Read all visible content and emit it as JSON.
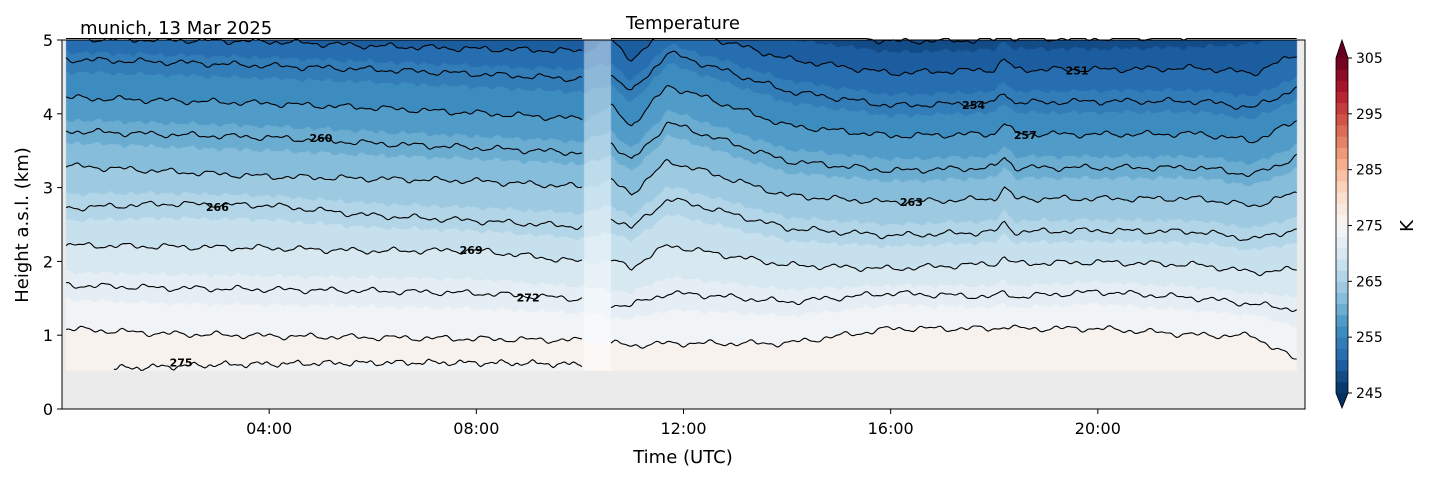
{
  "chart_data": {
    "type": "contour",
    "title": "Temperature",
    "subtitle": "munich, 13 Mar 2025",
    "xlabel": "Time (UTC)",
    "ylabel": "Height a.s.l. (km)",
    "xlim": [
      0,
      24
    ],
    "ylim": [
      0,
      5
    ],
    "xticks": [
      {
        "value": 4,
        "label": "04:00"
      },
      {
        "value": 8,
        "label": "08:00"
      },
      {
        "value": 12,
        "label": "12:00"
      },
      {
        "value": 16,
        "label": "16:00"
      },
      {
        "value": 20,
        "label": "20:00"
      }
    ],
    "yticks": [
      {
        "value": 0,
        "label": "0"
      },
      {
        "value": 1,
        "label": "1"
      },
      {
        "value": 2,
        "label": "2"
      },
      {
        "value": 3,
        "label": "3"
      },
      {
        "value": 4,
        "label": "4"
      },
      {
        "value": 5,
        "label": "5"
      }
    ],
    "colorbar": {
      "label": "K",
      "colormap": "RdBu_r",
      "range": [
        245,
        305
      ],
      "step": 2,
      "extend": "both",
      "ticks": [
        {
          "value": 245,
          "label": "245"
        },
        {
          "value": 255,
          "label": "255"
        },
        {
          "value": 265,
          "label": "265"
        },
        {
          "value": 275,
          "label": "275"
        },
        {
          "value": 285,
          "label": "285"
        },
        {
          "value": 295,
          "label": "295"
        },
        {
          "value": 305,
          "label": "305"
        }
      ],
      "colors": [
        "#053061",
        "#2166ac",
        "#4393c3",
        "#92c5de",
        "#d1e5f0",
        "#f7f7f7",
        "#fddbc7",
        "#f4a582",
        "#d6604d",
        "#b2182b",
        "#67001f"
      ]
    },
    "missing_data_hours": [
      10.07,
      10.6
    ],
    "lowest_valid_height_km": 0.52,
    "times": [
      0,
      2,
      4,
      6,
      8,
      10.07,
      10.6,
      11.0,
      11.7,
      12.5,
      14,
      16,
      18,
      18.2,
      18.4,
      20,
      22,
      23,
      24
    ],
    "contours": [
      {
        "level": 248,
        "heights": [
          5.45,
          5.45,
          5.4,
          5.35,
          5.35,
          5.3,
          5.45,
          5.2,
          5.6,
          5.45,
          5.15,
          4.98,
          5.0,
          5.1,
          5.02,
          5.02,
          5.05,
          5.15,
          5.25
        ]
      },
      {
        "level": 251,
        "heights": [
          5.02,
          5.0,
          4.98,
          4.92,
          4.88,
          4.85,
          4.99,
          4.74,
          5.15,
          5.04,
          4.74,
          4.55,
          4.6,
          4.74,
          4.6,
          4.6,
          4.62,
          4.55,
          4.85
        ]
      },
      {
        "level": 254,
        "heights": [
          4.74,
          4.7,
          4.65,
          4.6,
          4.54,
          4.47,
          4.54,
          4.29,
          4.83,
          4.65,
          4.31,
          4.11,
          4.15,
          4.3,
          4.15,
          4.17,
          4.17,
          4.08,
          4.4
        ]
      },
      {
        "level": 257,
        "heights": [
          4.22,
          4.18,
          4.14,
          4.08,
          4.01,
          3.93,
          4.09,
          3.84,
          4.38,
          4.2,
          3.84,
          3.7,
          3.73,
          3.88,
          3.73,
          3.72,
          3.73,
          3.63,
          3.95
        ]
      },
      {
        "level": 260,
        "heights": [
          3.77,
          3.72,
          3.68,
          3.6,
          3.54,
          3.47,
          3.61,
          3.36,
          3.88,
          3.7,
          3.36,
          3.23,
          3.27,
          3.42,
          3.27,
          3.27,
          3.27,
          3.17,
          3.46
        ]
      },
      {
        "level": 263,
        "heights": [
          3.3,
          3.22,
          3.15,
          3.12,
          3.09,
          3.01,
          3.09,
          2.92,
          3.36,
          3.2,
          2.89,
          2.8,
          2.85,
          3.0,
          2.85,
          2.85,
          2.85,
          2.75,
          2.96
        ]
      },
      {
        "level": 266,
        "heights": [
          2.72,
          2.78,
          2.76,
          2.62,
          2.55,
          2.47,
          2.6,
          2.45,
          2.85,
          2.72,
          2.45,
          2.35,
          2.4,
          2.52,
          2.4,
          2.42,
          2.4,
          2.3,
          2.46
        ]
      },
      {
        "level": 269,
        "heights": [
          2.22,
          2.2,
          2.18,
          2.14,
          2.15,
          1.99,
          2.01,
          1.92,
          2.22,
          2.12,
          1.95,
          1.9,
          1.97,
          2.05,
          1.97,
          1.99,
          1.95,
          1.85,
          1.9
        ]
      },
      {
        "level": 272,
        "heights": [
          1.68,
          1.64,
          1.62,
          1.6,
          1.57,
          1.49,
          1.41,
          1.41,
          1.57,
          1.54,
          1.45,
          1.57,
          1.52,
          1.58,
          1.52,
          1.59,
          1.5,
          1.42,
          1.34
        ]
      },
      {
        "level": 275,
        "heights": [
          1.09,
          1.02,
          0.99,
          0.97,
          0.95,
          0.93,
          0.89,
          0.86,
          0.89,
          0.89,
          0.89,
          1.09,
          1.09,
          1.12,
          1.09,
          1.09,
          1.0,
          0.99,
          0.6
        ]
      }
    ],
    "inversion_contour": {
      "level": 275,
      "times": [
        1.0,
        3,
        5,
        7,
        9,
        10.07
      ],
      "heights": [
        0.55,
        0.6,
        0.62,
        0.63,
        0.62,
        0.6
      ]
    },
    "labels": [
      {
        "level": 251,
        "text": "251",
        "time": 19.6
      },
      {
        "level": 254,
        "text": "254",
        "time": 17.6
      },
      {
        "level": 257,
        "text": "257",
        "time": 18.6
      },
      {
        "level": 260,
        "text": "260",
        "time": 5.0
      },
      {
        "level": 263,
        "text": "263",
        "time": 16.4
      },
      {
        "level": 266,
        "text": "266",
        "time": 3.0
      },
      {
        "level": 269,
        "text": "269",
        "time": 7.9
      },
      {
        "level": 272,
        "text": "272",
        "time": 9.0
      },
      {
        "level": 275,
        "text": "275",
        "time": 2.3,
        "inversion": true
      }
    ]
  }
}
